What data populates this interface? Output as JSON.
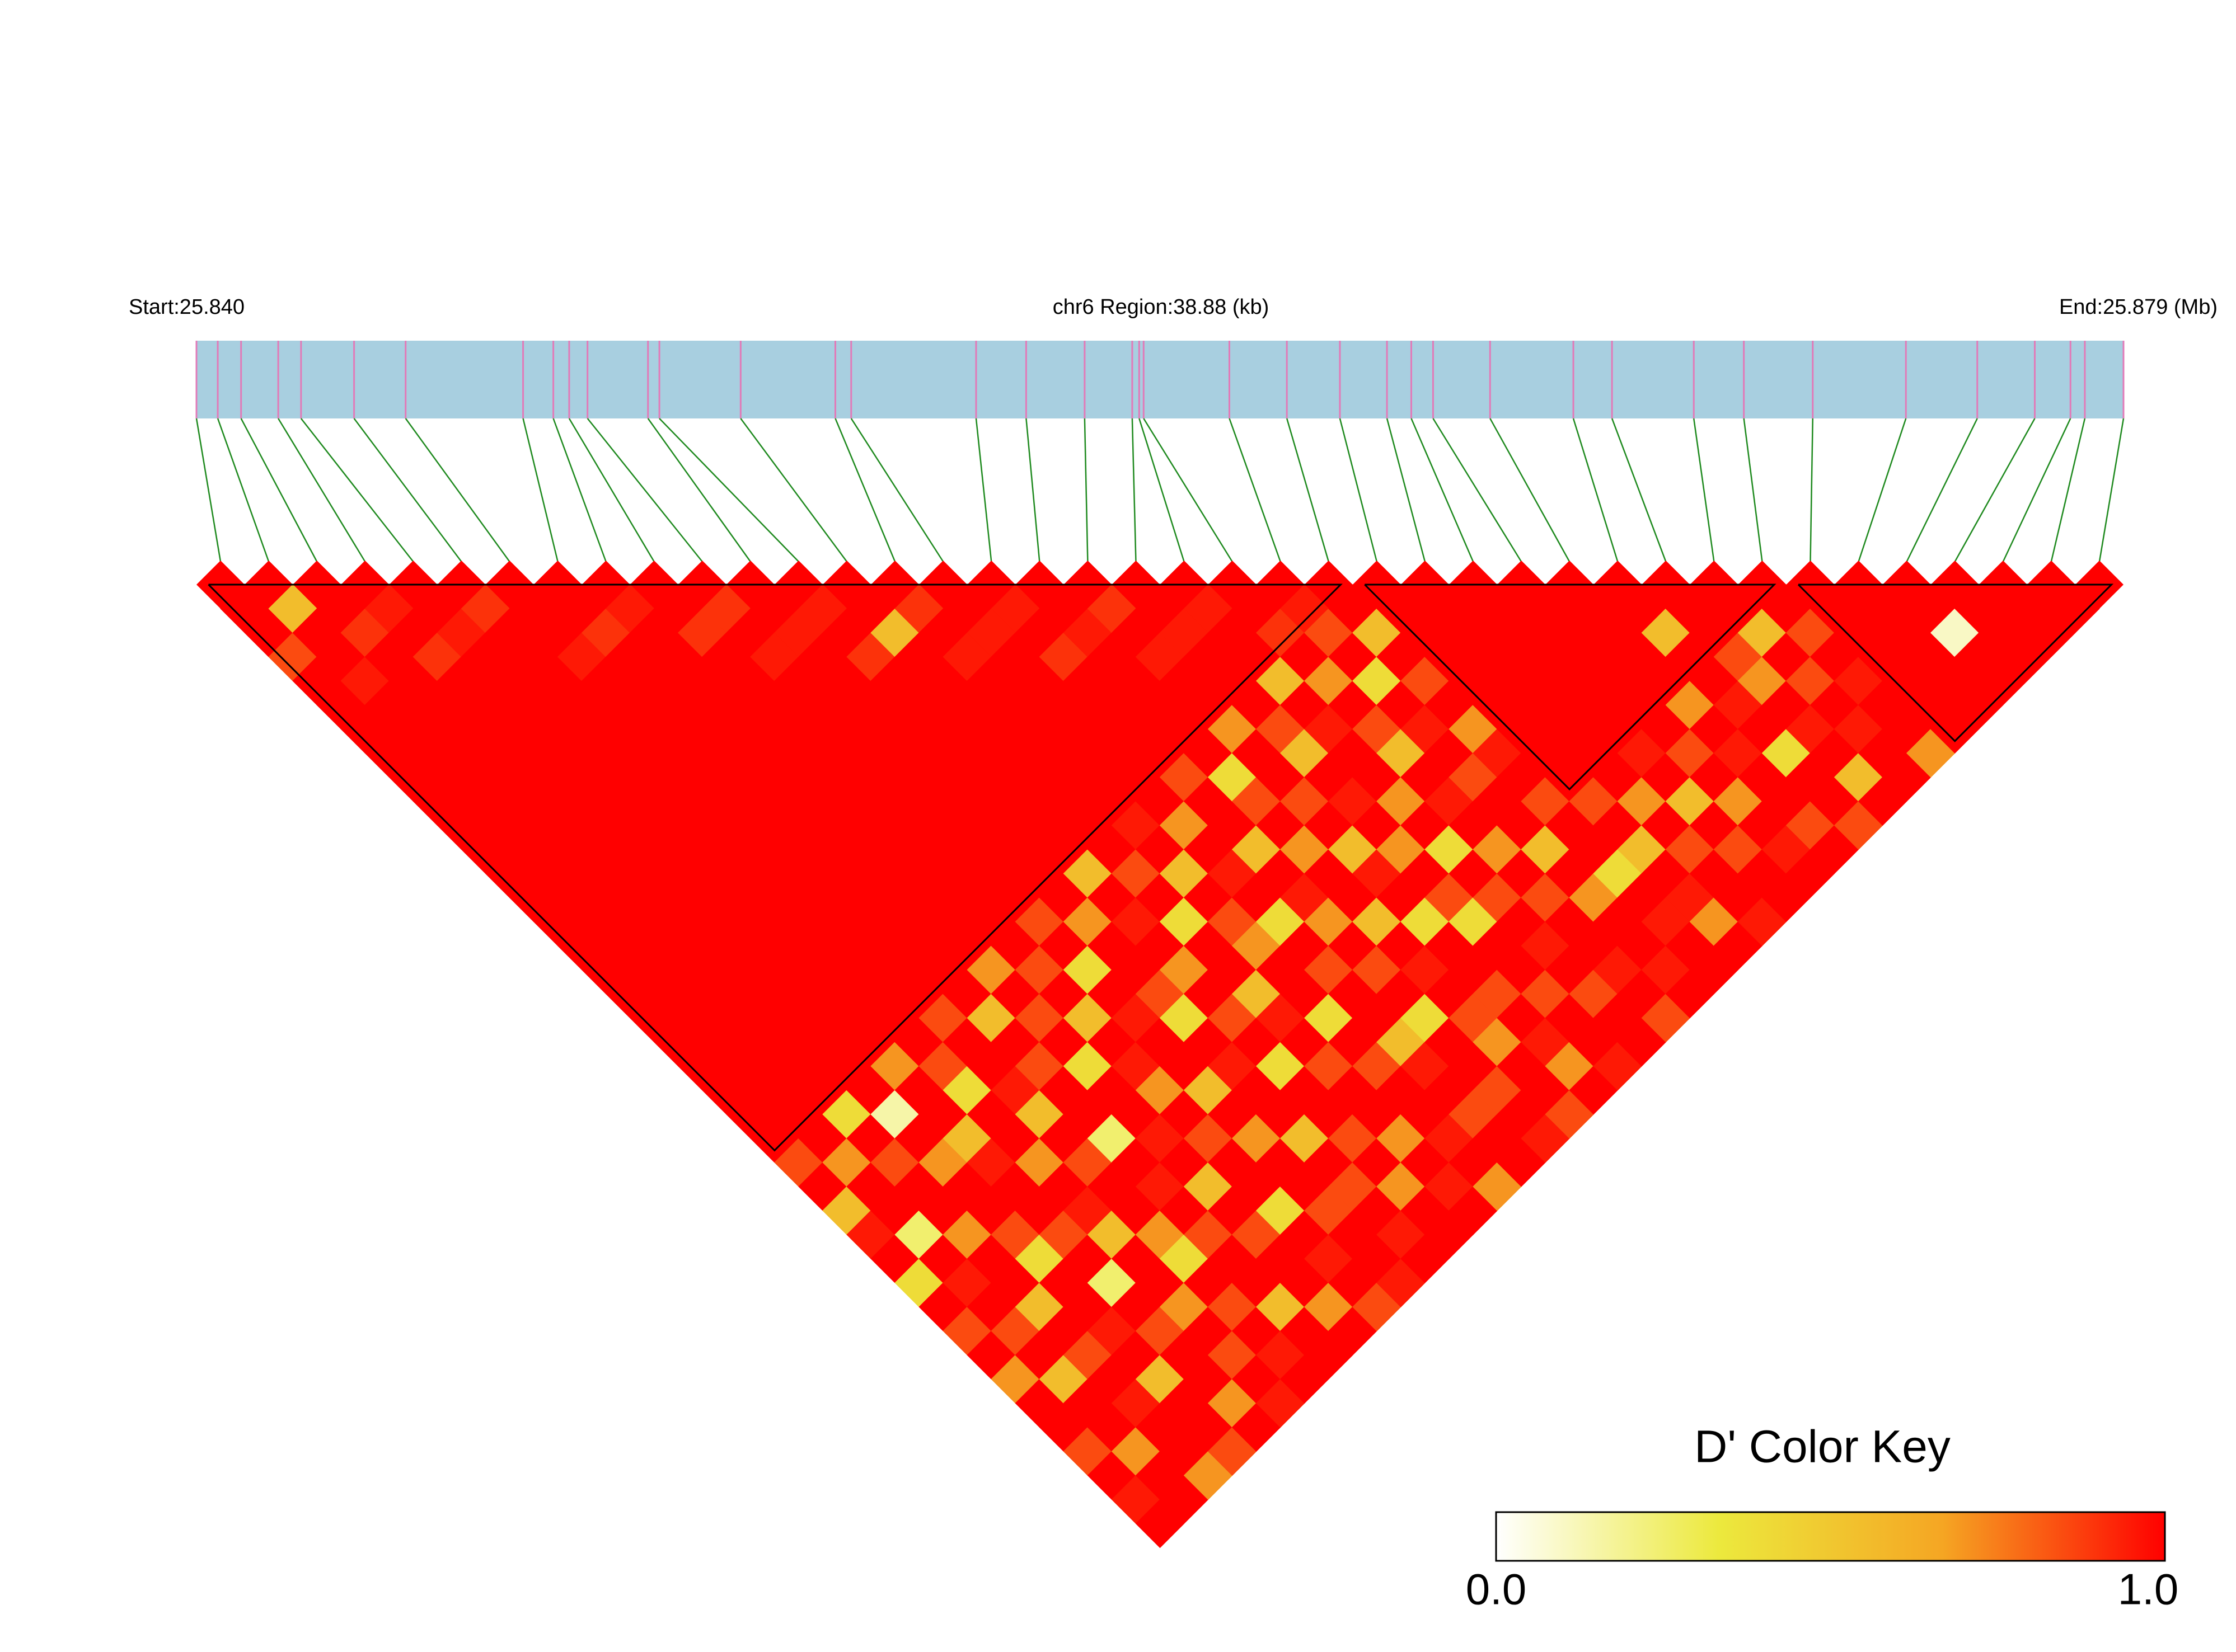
{
  "chart_data": {
    "type": "ldheatmap",
    "start_label": "Start:25.840",
    "region_label": "chr6 Region:38.88 (kb)",
    "end_label": "End:25.879 (Mb)",
    "key_title": "D' Color Key",
    "xlim": [
      25.84,
      25.87888
    ],
    "positions": [
      25.84,
      25.84043,
      25.8409,
      25.84165,
      25.84211,
      25.84318,
      25.84422,
      25.84659,
      25.8472,
      25.84752,
      25.84789,
      25.84911,
      25.84934,
      25.85098,
      25.85289,
      25.85321,
      25.85573,
      25.85674,
      25.85792,
      25.85888,
      25.85902,
      25.85911,
      25.86084,
      25.862,
      25.86307,
      25.86402,
      25.86451,
      25.86495,
      25.8661,
      25.86778,
      25.86856,
      25.87021,
      25.87122,
      25.87261,
      25.87449,
      25.87593,
      25.87709,
      25.87781,
      25.8781,
      25.87888
    ],
    "ld": [
      [
        1,
        1,
        0.85,
        1,
        1,
        1,
        1,
        1,
        1,
        1,
        1,
        1,
        1,
        1,
        1,
        1,
        1,
        1,
        1,
        1,
        1,
        1,
        1,
        0.85,
        1,
        0.55,
        0.95,
        1,
        0.4,
        1,
        0.85,
        1,
        0.7,
        1,
        1,
        0.85,
        1,
        0.95,
        1
      ],
      [
        0.55,
        1,
        1,
        0.95,
        1,
        1,
        1,
        1,
        1,
        1,
        1,
        1,
        1,
        1,
        1,
        1,
        1,
        1,
        1,
        1,
        1,
        1,
        1,
        0.7,
        1,
        1,
        0.25,
        1,
        0.95,
        1,
        0.85,
        1,
        0.55,
        1,
        1,
        0.7,
        1,
        1
      ],
      [
        1,
        0.9,
        1,
        1,
        1,
        1,
        1,
        1,
        1,
        1,
        1,
        1,
        1,
        1,
        1,
        1,
        1,
        1,
        1,
        1,
        1,
        0.4,
        1,
        0.85,
        1,
        1,
        0.7,
        1,
        1,
        0.55,
        1,
        0.85,
        1,
        0.95,
        1,
        1,
        0.7
      ],
      [
        0.95,
        1,
        0.9,
        1,
        1,
        1,
        1,
        1,
        1,
        1,
        1,
        1,
        1,
        1,
        1,
        1,
        1,
        1,
        1,
        1,
        1,
        0.15,
        1,
        0.7,
        1,
        1,
        0.85,
        0.4,
        1,
        1,
        0.95,
        1,
        0.55,
        1,
        1,
        0.85
      ],
      [
        1,
        0.95,
        1,
        1,
        1,
        1,
        1,
        1,
        1,
        1,
        1,
        1,
        1,
        1,
        1,
        1,
        1,
        1,
        1,
        0.7,
        1,
        1,
        0.55,
        0.95,
        1,
        1,
        0.85,
        1,
        0.25,
        1,
        0.85,
        1,
        1,
        0.7,
        1
      ],
      [
        0.9,
        1,
        1,
        1,
        1,
        1,
        1,
        1,
        1,
        1,
        1,
        1,
        1,
        1,
        1,
        1,
        1,
        1,
        1,
        0.85,
        0.4,
        1,
        1,
        0.7,
        1,
        0.95,
        0.55,
        1,
        1,
        0.7,
        1,
        0.85,
        1,
        0.95
      ],
      [
        1,
        1,
        0.95,
        1,
        1,
        1,
        1,
        1,
        1,
        1,
        1,
        1,
        1,
        1,
        1,
        1,
        1,
        0.85,
        1,
        1,
        0.95,
        0.55,
        1,
        0.85,
        1,
        1,
        0.7,
        0.4,
        1,
        0.85,
        1,
        0.95,
        1
      ],
      [
        1,
        0.9,
        1,
        1,
        1,
        1,
        1,
        1,
        1,
        1,
        1,
        1,
        1,
        1,
        1,
        1,
        1,
        0.55,
        1,
        0.85,
        1,
        1,
        0.25,
        1,
        0.95,
        1,
        0.85,
        1,
        1,
        0.55,
        1,
        1
      ],
      [
        0.95,
        1,
        1,
        1,
        1,
        1,
        1,
        1,
        1,
        1,
        1,
        1,
        1,
        1,
        1,
        0.7,
        1,
        0.85,
        1,
        0.4,
        1,
        1,
        0.95,
        1,
        0.55,
        1,
        0.85,
        1,
        1,
        0.7,
        1
      ],
      [
        1,
        0.9,
        1,
        1,
        1,
        1,
        1,
        1,
        1,
        1,
        1,
        1,
        1,
        1,
        1,
        0.85,
        1,
        0.55,
        1,
        0.95,
        0.7,
        1,
        0.85,
        1,
        1,
        0.4,
        1,
        0.95,
        1,
        0.85
      ],
      [
        0.9,
        1,
        0.95,
        1,
        1,
        1,
        1,
        1,
        1,
        1,
        1,
        1,
        1,
        0.85,
        1,
        0.4,
        1,
        0.95,
        1,
        1,
        0.55,
        1,
        0.7,
        1,
        1,
        0.85,
        1,
        1,
        0.95
      ],
      [
        1,
        0.95,
        1,
        1,
        1,
        1,
        1,
        1,
        1,
        1,
        1,
        1,
        1,
        0.7,
        1,
        1,
        0.85,
        0.4,
        1,
        0.95,
        1,
        1,
        0.55,
        1,
        0.85,
        1,
        0.95,
        1
      ],
      [
        0.95,
        1,
        0.9,
        1,
        1,
        1,
        1,
        1,
        1,
        1,
        1,
        0.55,
        1,
        0.95,
        1,
        0.7,
        1,
        0.85,
        1,
        0.4,
        1,
        1,
        0.85,
        1,
        0.7,
        1,
        1
      ],
      [
        1,
        0.55,
        1,
        1,
        1,
        1,
        1,
        1,
        1,
        1,
        1,
        0.85,
        1,
        0.4,
        1,
        1,
        0.55,
        0.95,
        1,
        0.85,
        1,
        1,
        0.7,
        1,
        0.95,
        1
      ],
      [
        0.9,
        1,
        0.95,
        1,
        1,
        1,
        1,
        1,
        1,
        0.95,
        1,
        0.55,
        1,
        0.85,
        0.7,
        1,
        1,
        0.4,
        1,
        0.85,
        1,
        1,
        0.95,
        1,
        0.7
      ],
      [
        1,
        0.95,
        1,
        1,
        1,
        1,
        1,
        1,
        1,
        0.7,
        1,
        0.95,
        1,
        0.4,
        1,
        0.85,
        1,
        1,
        0.55,
        0.95,
        1,
        0.85,
        1,
        1
      ],
      [
        0.95,
        1,
        0.9,
        1,
        1,
        1,
        1,
        0.85,
        1,
        1,
        0.55,
        1,
        0.95,
        0.7,
        1,
        0.85,
        1,
        0.4,
        1,
        1,
        0.85,
        1,
        0.95
      ],
      [
        1,
        0.95,
        1,
        1,
        1,
        1,
        1,
        0.4,
        0.85,
        1,
        0.7,
        1,
        1,
        0.55,
        1,
        0.95,
        1,
        0.85,
        0.7,
        1,
        1,
        0.85
      ],
      [
        0.9,
        1,
        0.95,
        1,
        1,
        0.7,
        1,
        1,
        0.85,
        1,
        0.55,
        0.95,
        1,
        0.4,
        1,
        1,
        0.85,
        1,
        0.95,
        0.7,
        1
      ],
      [
        1,
        0.95,
        1,
        1,
        1,
        0.85,
        0.55,
        1,
        0.95,
        1,
        0.7,
        1,
        0.85,
        0.4,
        1,
        1,
        0.85,
        1,
        1,
        0.95
      ],
      [
        0.95,
        1,
        1,
        0.55,
        1,
        0.95,
        1,
        1,
        0.7,
        1,
        0.4,
        1,
        0.85,
        1,
        0.95,
        1,
        0.85,
        1,
        1
      ],
      [
        1,
        0.9,
        1,
        0.7,
        1,
        0.85,
        0.55,
        1,
        0.95,
        1,
        0.7,
        1,
        0.85,
        1,
        1,
        0.95,
        1,
        0.85
      ],
      [
        0.95,
        0.85,
        1,
        0.4,
        1,
        0.95,
        1,
        0.85,
        1,
        1,
        0.55,
        1,
        0.7,
        1,
        1,
        0.95,
        1
      ],
      [
        1,
        0.55,
        1,
        0.85,
        1,
        0.7,
        0.95,
        1,
        0.85,
        1,
        1,
        0.4,
        1,
        0.95,
        1,
        1
      ],
      [
        1,
        1,
        1,
        1,
        1,
        1,
        1,
        1,
        0.85,
        1,
        0.55,
        1,
        0.95,
        0.7,
        1
      ],
      [
        1,
        1,
        1,
        1,
        1,
        1,
        1,
        1,
        0.7,
        1,
        0.85,
        1,
        1,
        0.95
      ],
      [
        1,
        1,
        1,
        1,
        1,
        1,
        0.95,
        1,
        0.55,
        1,
        0.85,
        1,
        1
      ],
      [
        1,
        1,
        1,
        1,
        1,
        1,
        0.85,
        1,
        0.7,
        1,
        0.95,
        1
      ],
      [
        1,
        1,
        1,
        1,
        0.7,
        1,
        0.95,
        1,
        1,
        0.85,
        1
      ],
      [
        1,
        0.55,
        1,
        1,
        0.95,
        1,
        0.4,
        1,
        1,
        0.85
      ],
      [
        1,
        1,
        0.85,
        0.7,
        1,
        0.95,
        1,
        0.55,
        1
      ],
      [
        1,
        0.55,
        1,
        0.85,
        1,
        0.95,
        1,
        1
      ],
      [
        1,
        0.85,
        1,
        0.95,
        1,
        1,
        0.7
      ],
      [
        1,
        1,
        1,
        1,
        1,
        1
      ],
      [
        1,
        1,
        1,
        1,
        1
      ],
      [
        1,
        0.1,
        1,
        1
      ],
      [
        1,
        1,
        1
      ],
      [
        1,
        1
      ],
      [
        1
      ]
    ],
    "blocks": [
      [
        0,
        23
      ],
      [
        24,
        32
      ],
      [
        33,
        39
      ]
    ],
    "colors": [
      "#ffffff",
      "#ece93d",
      "#f5a623",
      "#ff0000"
    ],
    "keylim": [
      0,
      1
    ],
    "keyticks": [
      {
        "value": 0,
        "label": "0.0"
      },
      {
        "value": 1,
        "label": "1.0"
      }
    ],
    "bar_color": "#a8cfe0",
    "tick_color": "#e27ab8",
    "link_color": "#1f8a1f",
    "block_color": "#000000"
  }
}
